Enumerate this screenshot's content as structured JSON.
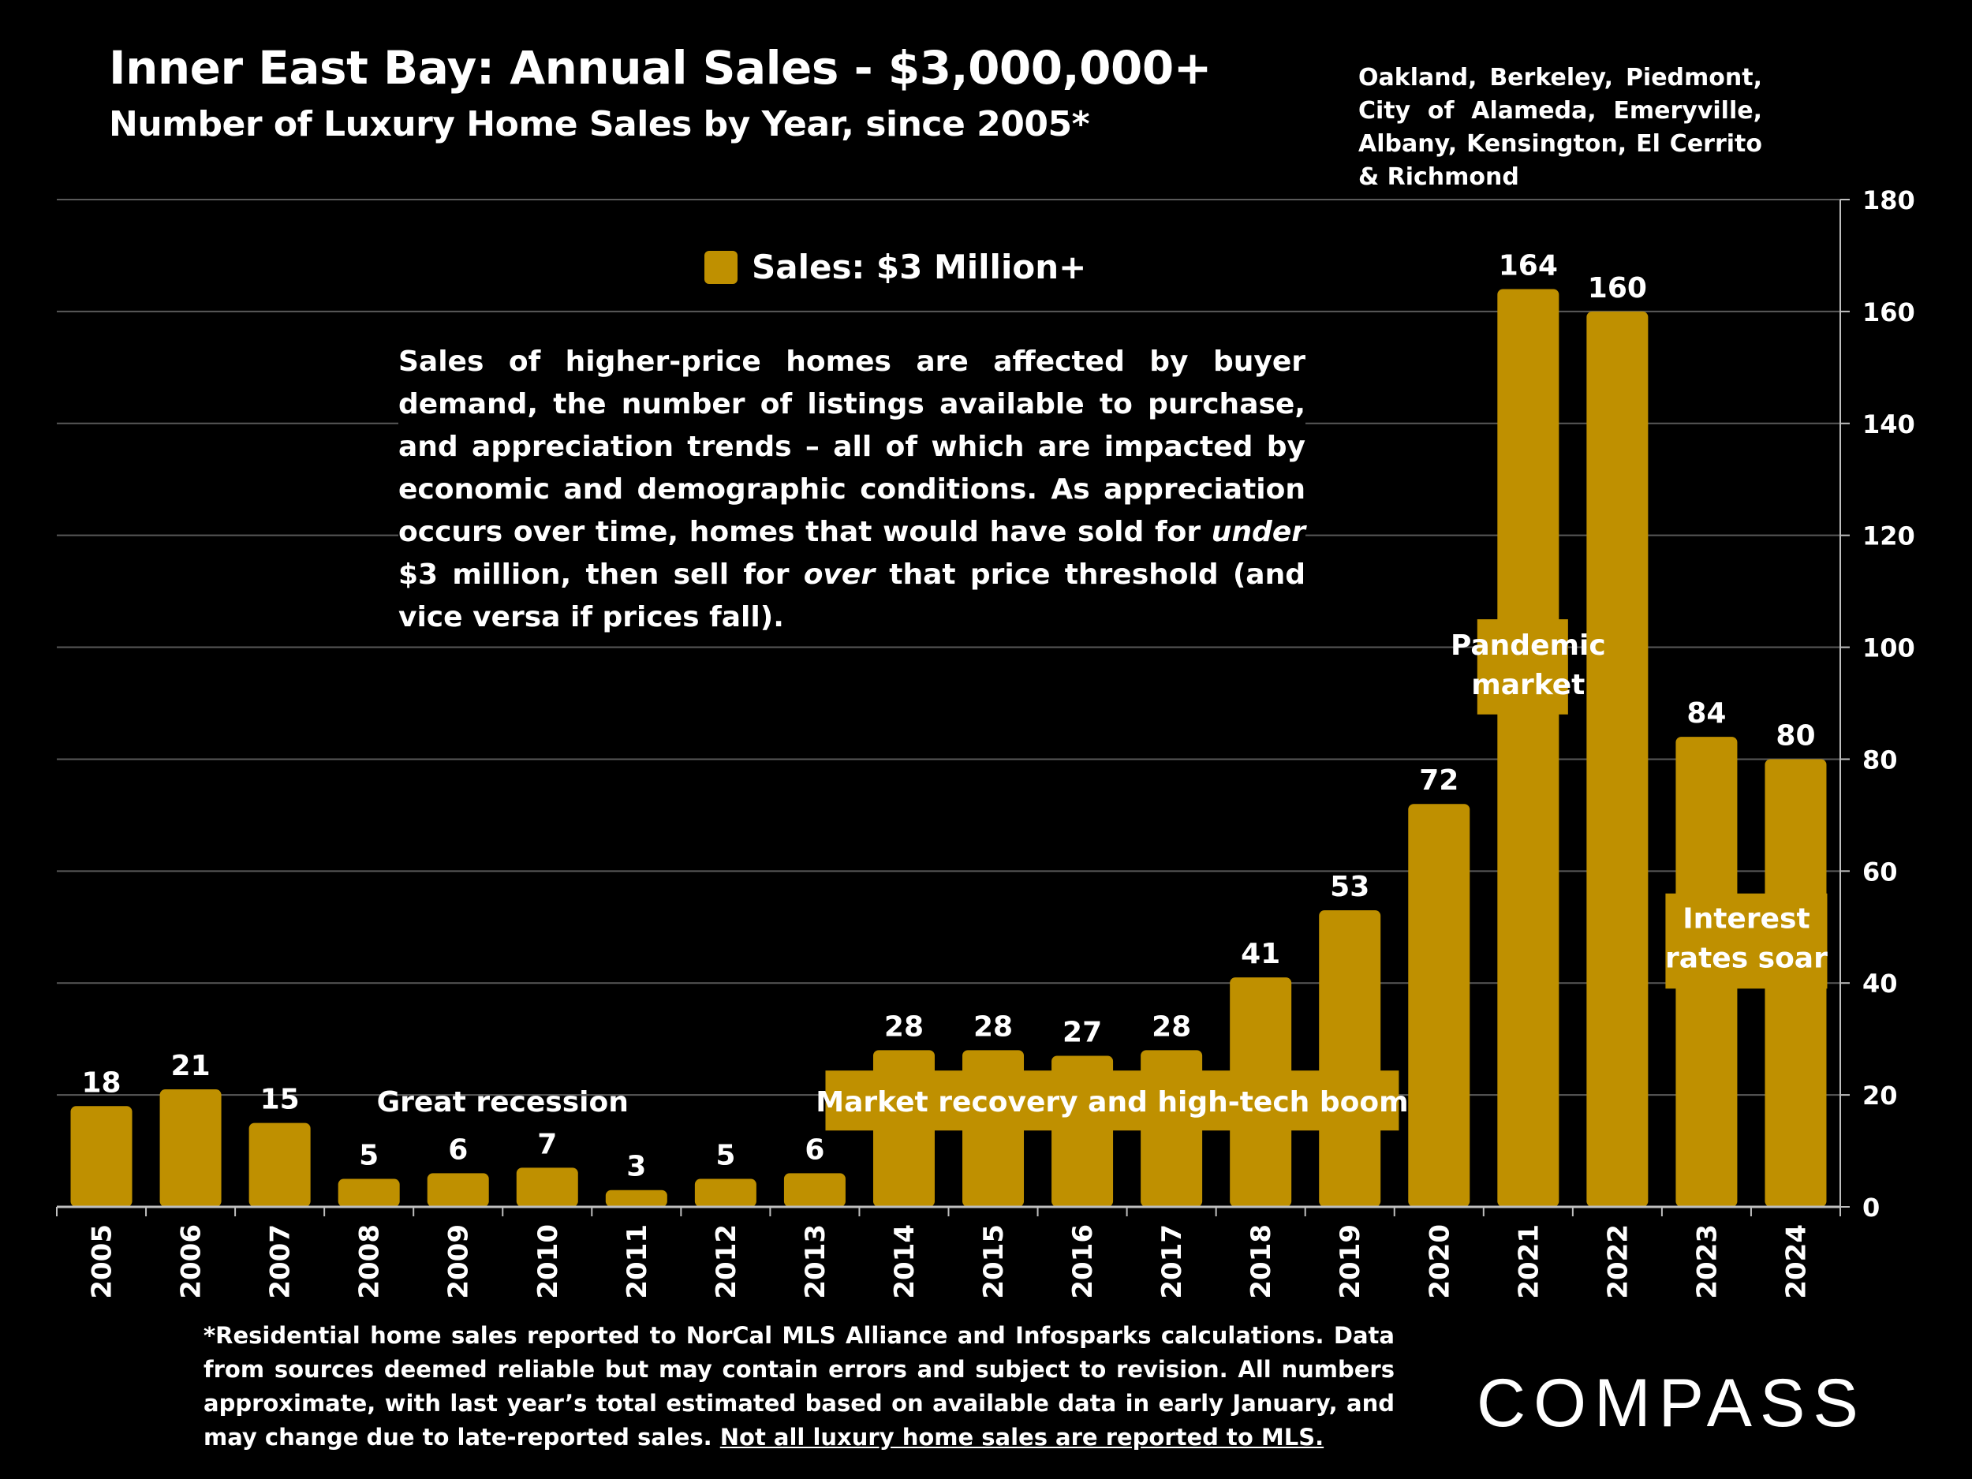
{
  "header": {
    "title": "Inner East Bay:  Annual Sales - $3,000,000+",
    "subtitle": "Number of Luxury Home Sales by Year, since 2005*",
    "region_note": "Oakland, Berkeley, Piedmont, City of Alameda, Emeryville, Albany, Kensington, El Cerrito & Richmond"
  },
  "description": {
    "part1": "Sales of higher-price homes are affected by buyer demand, the number of listings available to purchase, and appreciation trends – all of which are impacted by economic and demographic conditions. As appreciation occurs over time, homes that would have sold for ",
    "em1": "under",
    "part2": " $3 million, then sell for ",
    "em2": "over",
    "part3": " that price threshold (and vice versa if prices fall)."
  },
  "footnote": {
    "text": "*Residential home sales reported to NorCal MLS Alliance and Infosparks calculations. Data from sources deemed reliable but may contain errors and subject to revision. All numbers approximate, with last year’s total estimated based on available data in early January, and may change due to late-reported sales. ",
    "underlined": "Not all luxury home sales are reported to MLS."
  },
  "brand": {
    "logo_text": "COMPASS"
  },
  "colors": {
    "background": "#000000",
    "bar": "#BF9000",
    "text": "#FFFFFF",
    "grid": "#595959"
  },
  "chart_data": {
    "type": "bar",
    "categories": [
      "2005",
      "2006",
      "2007",
      "2008",
      "2009",
      "2010",
      "2011",
      "2012",
      "2013",
      "2014",
      "2015",
      "2016",
      "2017",
      "2018",
      "2019",
      "2020",
      "2021",
      "2022",
      "2023",
      "2024"
    ],
    "series": [
      {
        "name": "Sales: $3 Million+",
        "values": [
          18,
          21,
          15,
          5,
          6,
          7,
          3,
          5,
          6,
          28,
          28,
          27,
          28,
          41,
          53,
          72,
          164,
          160,
          84,
          80
        ]
      }
    ],
    "ylim": [
      0,
      180
    ],
    "yticks": [
      0,
      20,
      40,
      60,
      80,
      100,
      120,
      140,
      160,
      180
    ],
    "y_axis_side": "right",
    "grid": true,
    "legend_position": "top-center",
    "annotations": [
      {
        "text": "Great recession",
        "years": "2009-2010"
      },
      {
        "text": "Market recovery and high-tech boom",
        "years": "2013-2019"
      },
      {
        "text": "Pandemic market",
        "years": "2021"
      },
      {
        "text": "Interest rates soar",
        "years": "2023"
      }
    ]
  }
}
